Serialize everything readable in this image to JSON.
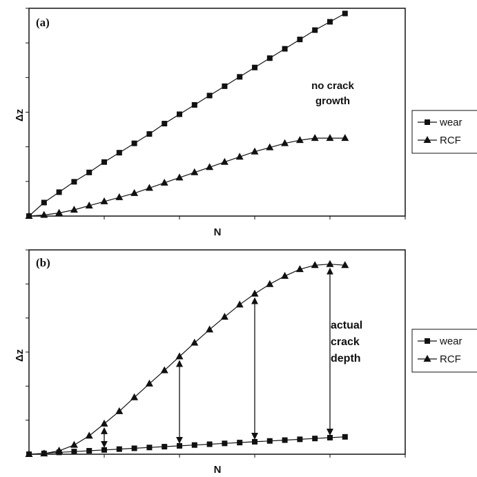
{
  "chart_data": [
    {
      "type": "line",
      "panel_label": "(a)",
      "xlabel": "N",
      "ylabel": "Δz",
      "xlim": [
        0,
        1
      ],
      "ylim": [
        0,
        1
      ],
      "annotation": [
        "no crack",
        "growth"
      ],
      "legend_position": "right",
      "series": [
        {
          "name": "wear",
          "marker": "square",
          "x": [
            0.0,
            0.04,
            0.08,
            0.12,
            0.16,
            0.2,
            0.24,
            0.28,
            0.32,
            0.36,
            0.4,
            0.44,
            0.48,
            0.52,
            0.56,
            0.6,
            0.64,
            0.68,
            0.72,
            0.76,
            0.8,
            0.84
          ],
          "y": [
            0.0,
            0.065,
            0.115,
            0.165,
            0.21,
            0.26,
            0.305,
            0.35,
            0.395,
            0.445,
            0.49,
            0.535,
            0.58,
            0.625,
            0.67,
            0.715,
            0.76,
            0.805,
            0.85,
            0.895,
            0.935,
            0.975
          ]
        },
        {
          "name": "RCF",
          "marker": "triangle",
          "x": [
            0.0,
            0.04,
            0.08,
            0.12,
            0.16,
            0.2,
            0.24,
            0.28,
            0.32,
            0.36,
            0.4,
            0.44,
            0.48,
            0.52,
            0.56,
            0.6,
            0.64,
            0.68,
            0.72,
            0.76,
            0.8,
            0.84
          ],
          "y": [
            0.0,
            0.005,
            0.015,
            0.03,
            0.05,
            0.07,
            0.09,
            0.11,
            0.135,
            0.16,
            0.185,
            0.21,
            0.235,
            0.26,
            0.285,
            0.31,
            0.33,
            0.35,
            0.365,
            0.375,
            0.375,
            0.375
          ]
        }
      ]
    },
    {
      "type": "line",
      "panel_label": "(b)",
      "xlabel": "N",
      "ylabel": "Δz",
      "xlim": [
        0,
        1
      ],
      "ylim": [
        0,
        1
      ],
      "annotation": [
        "actual",
        "crack",
        "depth"
      ],
      "legend_position": "right",
      "series": [
        {
          "name": "wear",
          "marker": "square",
          "x": [
            0.0,
            0.04,
            0.08,
            0.12,
            0.16,
            0.2,
            0.24,
            0.28,
            0.32,
            0.36,
            0.4,
            0.44,
            0.48,
            0.52,
            0.56,
            0.6,
            0.64,
            0.68,
            0.72,
            0.76,
            0.8,
            0.84
          ],
          "y": [
            0.0,
            0.004,
            0.009,
            0.013,
            0.017,
            0.021,
            0.025,
            0.029,
            0.033,
            0.037,
            0.041,
            0.045,
            0.049,
            0.053,
            0.057,
            0.061,
            0.065,
            0.069,
            0.073,
            0.077,
            0.081,
            0.085
          ]
        },
        {
          "name": "RCF",
          "marker": "triangle",
          "x": [
            0.0,
            0.04,
            0.08,
            0.12,
            0.16,
            0.2,
            0.24,
            0.28,
            0.32,
            0.36,
            0.4,
            0.44,
            0.48,
            0.52,
            0.56,
            0.6,
            0.64,
            0.68,
            0.72,
            0.76,
            0.8,
            0.84
          ],
          "y": [
            0.0,
            0.003,
            0.017,
            0.045,
            0.09,
            0.149,
            0.21,
            0.278,
            0.345,
            0.41,
            0.478,
            0.545,
            0.61,
            0.672,
            0.732,
            0.785,
            0.832,
            0.872,
            0.905,
            0.925,
            0.93,
            0.925
          ]
        }
      ],
      "crack_depth_arrows_x": [
        0.2,
        0.4,
        0.6,
        0.8
      ]
    }
  ]
}
